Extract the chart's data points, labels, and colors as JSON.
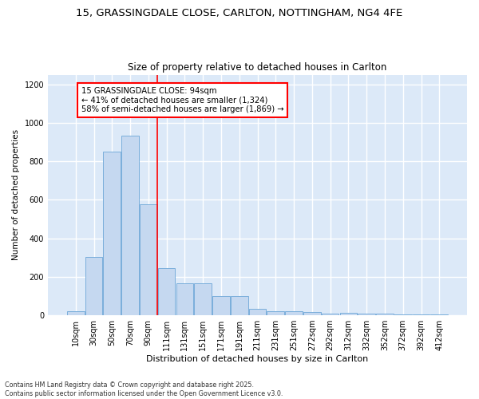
{
  "title_line1": "15, GRASSINGDALE CLOSE, CARLTON, NOTTINGHAM, NG4 4FE",
  "title_line2": "Size of property relative to detached houses in Carlton",
  "xlabel": "Distribution of detached houses by size in Carlton",
  "ylabel": "Number of detached properties",
  "categories": [
    "10sqm",
    "30sqm",
    "50sqm",
    "70sqm",
    "90sqm",
    "111sqm",
    "131sqm",
    "151sqm",
    "171sqm",
    "191sqm",
    "211sqm",
    "231sqm",
    "251sqm",
    "272sqm",
    "292sqm",
    "312sqm",
    "332sqm",
    "352sqm",
    "372sqm",
    "392sqm",
    "412sqm"
  ],
  "values": [
    20,
    305,
    850,
    935,
    575,
    245,
    165,
    165,
    100,
    100,
    32,
    20,
    20,
    15,
    8,
    12,
    8,
    8,
    5,
    5,
    5
  ],
  "bar_color": "#c5d8f0",
  "bar_edge_color": "#7aaedb",
  "bg_color": "#dce9f8",
  "grid_color": "#ffffff",
  "vline_color": "red",
  "annotation_text": "15 GRASSINGDALE CLOSE: 94sqm\n← 41% of detached houses are smaller (1,324)\n58% of semi-detached houses are larger (1,869) →",
  "ylim": [
    0,
    1250
  ],
  "yticks": [
    0,
    200,
    400,
    600,
    800,
    1000,
    1200
  ],
  "footer_line1": "Contains HM Land Registry data © Crown copyright and database right 2025.",
  "footer_line2": "Contains public sector information licensed under the Open Government Licence v3.0.",
  "fig_width": 6.0,
  "fig_height": 5.0,
  "dpi": 100
}
